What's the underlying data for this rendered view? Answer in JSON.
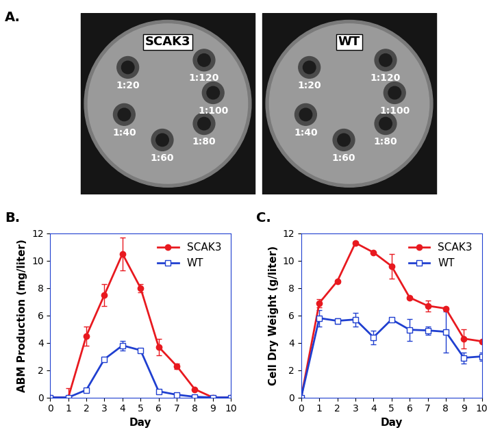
{
  "panel_labels": [
    "A.",
    "B.",
    "C."
  ],
  "plates": [
    {
      "label": "SCAK3",
      "wells": [
        "1:20",
        "1:40",
        "1:60",
        "1:80",
        "1:100",
        "1:120"
      ]
    },
    {
      "label": "WT",
      "wells": [
        "1:20",
        "1:40",
        "1:60",
        "1:80",
        "1:100",
        "1:120"
      ]
    }
  ],
  "chart_data": [
    {
      "type": "line",
      "x_label": "Day",
      "y_label": "ABM Production (mg/liter)",
      "x": [
        0,
        1,
        2,
        3,
        4,
        5,
        6,
        7,
        8,
        9,
        10
      ],
      "xlim": [
        0,
        10
      ],
      "xticks": [
        0,
        1,
        2,
        3,
        4,
        5,
        6,
        7,
        8,
        9,
        10
      ],
      "ylim": [
        0,
        12
      ],
      "yticks": [
        0,
        2,
        4,
        6,
        8,
        10,
        12
      ],
      "legend": "upper right",
      "series": [
        {
          "name": "SCAK3",
          "color": "#e8191f",
          "marker": "circle",
          "values": [
            0,
            0,
            4.5,
            7.5,
            10.5,
            8.0,
            3.7,
            2.3,
            0.6,
            0,
            0
          ],
          "errors": [
            0,
            0.7,
            0.7,
            0.8,
            1.2,
            0.3,
            0.6,
            0.2,
            0.05,
            0,
            0
          ]
        },
        {
          "name": "WT",
          "color": "#1f3fd0",
          "marker": "open_square",
          "values": [
            0,
            0,
            0.55,
            2.8,
            3.8,
            3.45,
            0.45,
            0.2,
            0.05,
            0,
            0
          ],
          "errors": [
            0,
            0,
            0.1,
            0.15,
            0.35,
            0.05,
            0.1,
            0.05,
            0,
            0,
            0
          ]
        }
      ]
    },
    {
      "type": "line",
      "x_label": "Day",
      "y_label": "Cell Dry Weight (g/liter)",
      "x": [
        0,
        1,
        2,
        3,
        4,
        5,
        6,
        7,
        8,
        9,
        10
      ],
      "xlim": [
        0,
        10
      ],
      "xticks": [
        0,
        1,
        2,
        3,
        4,
        5,
        6,
        7,
        8,
        9,
        10
      ],
      "ylim": [
        0,
        12
      ],
      "yticks": [
        0,
        2,
        4,
        6,
        8,
        10,
        12
      ],
      "legend": "upper right",
      "series": [
        {
          "name": "SCAK3",
          "color": "#e8191f",
          "marker": "circle",
          "values": [
            0,
            6.9,
            8.5,
            11.3,
            10.6,
            9.6,
            7.3,
            6.7,
            6.5,
            4.3,
            4.1
          ],
          "errors": [
            0,
            0.3,
            0.1,
            0.1,
            0.05,
            0.9,
            0.1,
            0.4,
            0.1,
            0.7,
            0
          ]
        },
        {
          "name": "WT",
          "color": "#1f3fd0",
          "marker": "open_square",
          "values": [
            0,
            5.8,
            5.6,
            5.7,
            4.4,
            5.7,
            4.95,
            4.9,
            4.8,
            2.9,
            3.0
          ],
          "errors": [
            0,
            0.6,
            0.2,
            0.5,
            0.5,
            0.1,
            0.8,
            0.3,
            1.5,
            0.4,
            0.3
          ]
        }
      ]
    }
  ]
}
